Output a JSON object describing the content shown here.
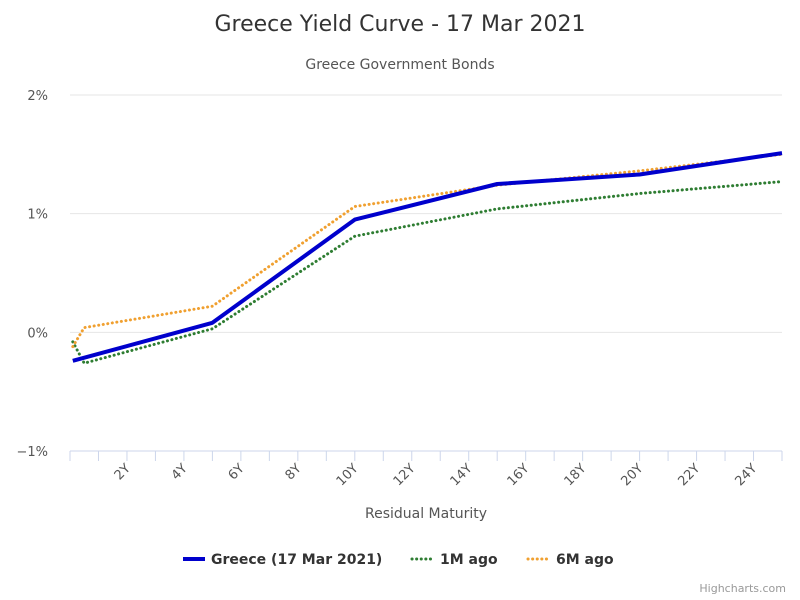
{
  "chart_data": {
    "type": "line",
    "title": "Greece Yield Curve - 17 Mar 2021",
    "subtitle": "Greece Government Bonds",
    "xlabel": "Residual Maturity",
    "ylabel": "",
    "xlim": [
      0,
      25
    ],
    "ylim": [
      -1,
      2
    ],
    "x_ticks": [
      {
        "value": 2,
        "label": "2Y"
      },
      {
        "value": 4,
        "label": "4Y"
      },
      {
        "value": 6,
        "label": "6Y"
      },
      {
        "value": 8,
        "label": "8Y"
      },
      {
        "value": 10,
        "label": "10Y"
      },
      {
        "value": 12,
        "label": "12Y"
      },
      {
        "value": 14,
        "label": "14Y"
      },
      {
        "value": 16,
        "label": "16Y"
      },
      {
        "value": 18,
        "label": "18Y"
      },
      {
        "value": 20,
        "label": "20Y"
      },
      {
        "value": 22,
        "label": "22Y"
      },
      {
        "value": 24,
        "label": "24Y"
      }
    ],
    "y_ticks": [
      {
        "value": 2,
        "label": "2%"
      },
      {
        "value": 1,
        "label": "1%"
      },
      {
        "value": 0,
        "label": "0%"
      },
      {
        "value": -1,
        "label": "−1%"
      }
    ],
    "grid": true,
    "legend_position": "bottom-center",
    "series": [
      {
        "name": "Greece (17 Mar 2021)",
        "color": "#0000cc",
        "style": "solid",
        "points": [
          [
            0.1,
            -0.24
          ],
          [
            5,
            0.08
          ],
          [
            10,
            0.95
          ],
          [
            15,
            1.25
          ],
          [
            20,
            1.33
          ],
          [
            25,
            1.51
          ]
        ]
      },
      {
        "name": "1M ago",
        "color": "#2e7d32",
        "style": "dotted",
        "points": [
          [
            0.1,
            -0.08
          ],
          [
            0.5,
            -0.26
          ],
          [
            5,
            0.03
          ],
          [
            10,
            0.81
          ],
          [
            15,
            1.04
          ],
          [
            20,
            1.17
          ],
          [
            25,
            1.27
          ]
        ]
      },
      {
        "name": "6M ago",
        "color": "#f0a030",
        "style": "dotted",
        "points": [
          [
            0.1,
            -0.12
          ],
          [
            0.5,
            0.04
          ],
          [
            5,
            0.22
          ],
          [
            10,
            1.06
          ],
          [
            15,
            1.24
          ],
          [
            20,
            1.36
          ],
          [
            25,
            1.5
          ]
        ]
      }
    ]
  },
  "credits": "Highcharts.com"
}
